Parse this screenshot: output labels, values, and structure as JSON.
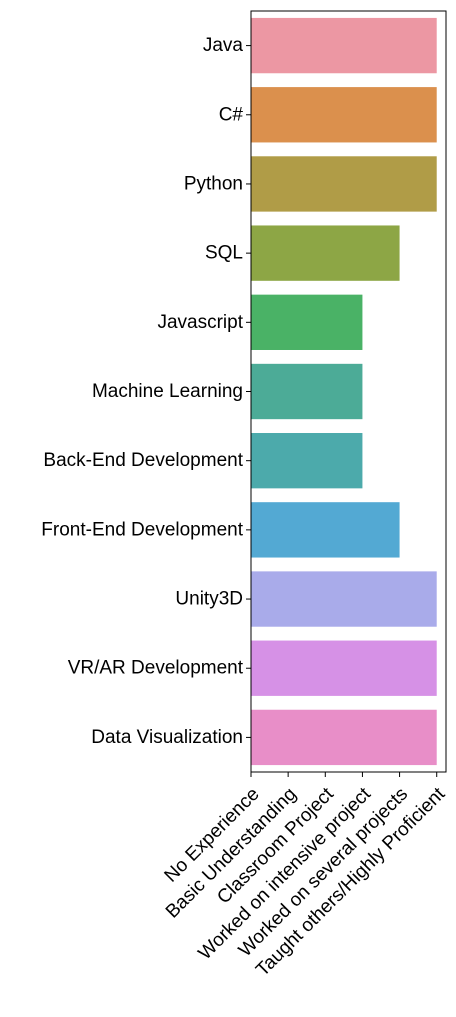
{
  "chart_data": {
    "type": "bar",
    "orientation": "horizontal",
    "title": "",
    "xlabel": "",
    "ylabel": "",
    "x_ticks": [
      "No Experience",
      "Basic Understanding",
      "Classroom Project",
      "Worked on intensive project",
      "Worked on several projects",
      "Taught others/Highly Proficient"
    ],
    "xlim": [
      0,
      5.25
    ],
    "categories": [
      "Java",
      "C#",
      "Python",
      "SQL",
      "Javascript",
      "Machine Learning",
      "Back-End Development",
      "Front-End Development",
      "Unity3D",
      "VR/AR Development",
      "Data Visualization"
    ],
    "values": [
      5,
      5,
      5,
      4,
      3,
      3,
      3,
      4,
      5,
      5,
      5
    ],
    "colors": [
      "#ec97a3",
      "#db904d",
      "#b09c47",
      "#8da645",
      "#4ab266",
      "#4cab97",
      "#4caaab",
      "#53a9d3",
      "#a9abea",
      "#d691e6",
      "#e88ec8"
    ],
    "grid": false,
    "legend": "none"
  }
}
